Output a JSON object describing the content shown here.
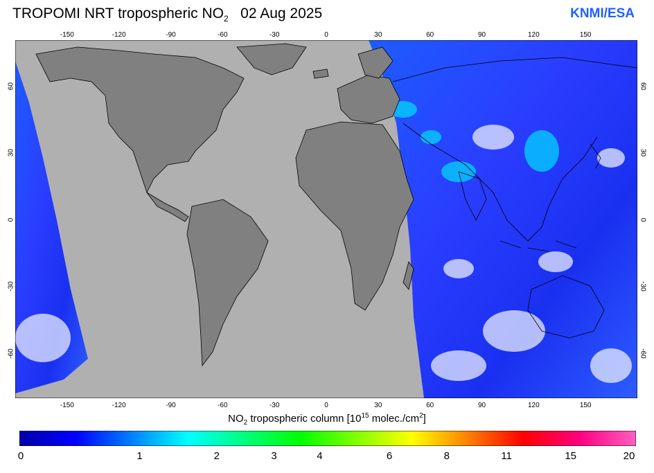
{
  "header": {
    "title_pre": "TROPOMI  NRT tropospheric NO",
    "title_sub": "2",
    "title_date": "02 Aug 2025",
    "credit": "KNMI/ESA"
  },
  "map": {
    "lon_ticks": [
      "-150",
      "-120",
      "-90",
      "-60",
      "-30",
      "0",
      "30",
      "60",
      "90",
      "120",
      "150"
    ],
    "lat_ticks": [
      "60",
      "30",
      "0",
      "-30",
      "-60"
    ],
    "colors": {
      "ocean_nodata": "#b0b0b0",
      "land_nodata": "#808080",
      "border": "#000000"
    }
  },
  "colorbar": {
    "unit_pre": "NO",
    "unit_sub": "2",
    "unit_mid": " tropospheric column [10",
    "unit_sup1": "15",
    "unit_mid2": " molec./cm",
    "unit_sup2": "2",
    "unit_end": "]",
    "labels": [
      "0",
      "1",
      "2",
      "3",
      "4",
      "6",
      "8",
      "11",
      "15",
      "20"
    ],
    "label_fracs": [
      0,
      0.195,
      0.32,
      0.413,
      0.487,
      0.6,
      0.693,
      0.79,
      0.894,
      1.0
    ],
    "gradient": [
      "#0000a8",
      "#0000ff",
      "#0080ff",
      "#00ffff",
      "#00ff80",
      "#00ff00",
      "#80ff00",
      "#ffff00",
      "#ff8000",
      "#ff0000",
      "#ff0080",
      "#ff60c0"
    ]
  }
}
